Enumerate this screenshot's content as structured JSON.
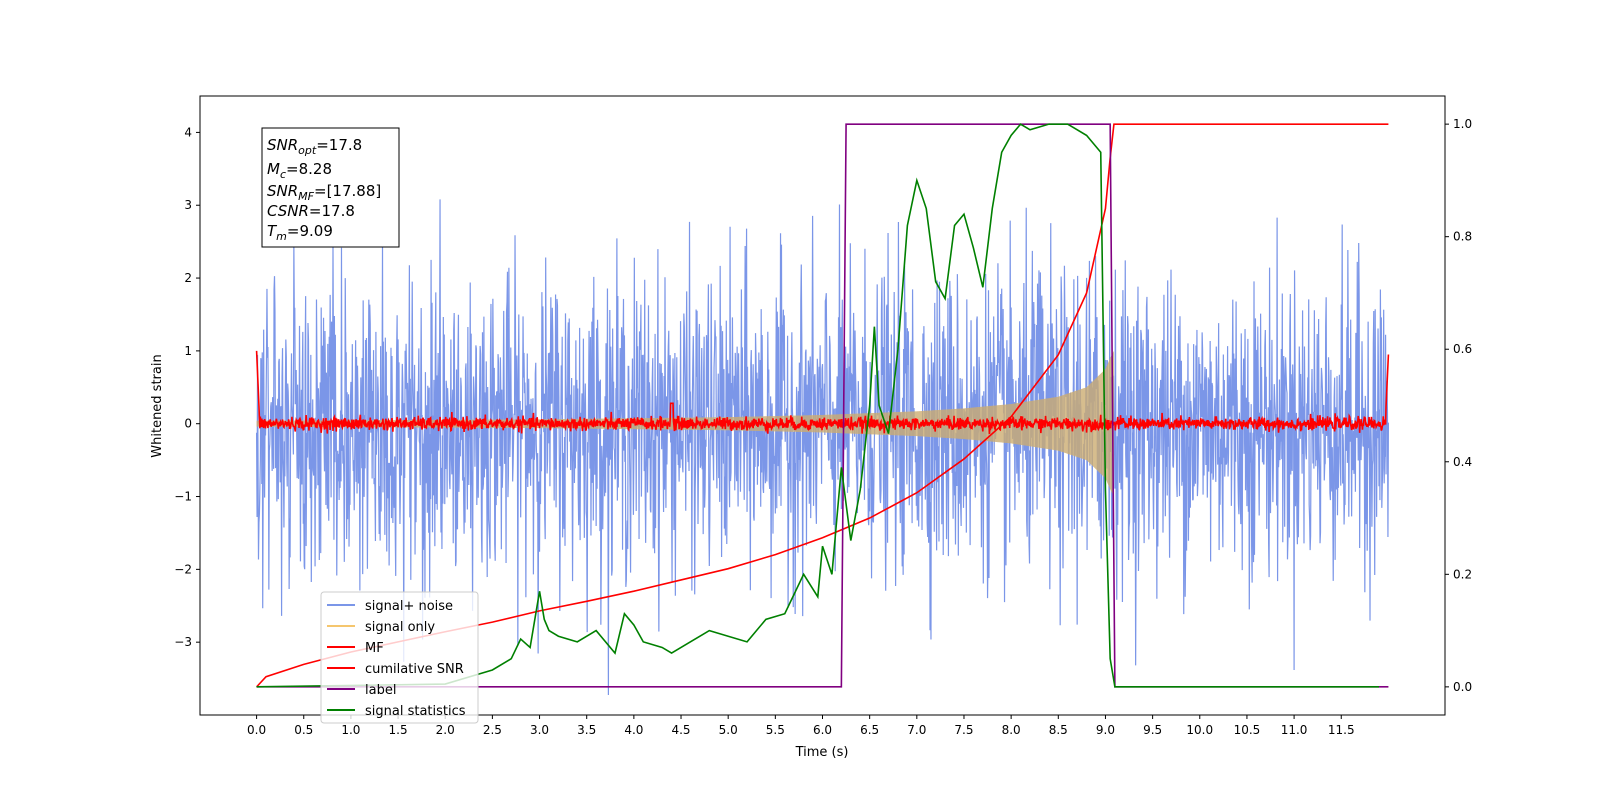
{
  "chart_data": {
    "type": "line",
    "xlabel": "Time (s)",
    "ylabel": "Whitened strain",
    "xlim": [
      -0.6,
      12.6
    ],
    "ylim": [
      -4.0,
      4.5
    ],
    "y2lim": [
      -0.05,
      1.05
    ],
    "x_ticks": [
      0.0,
      0.5,
      1.0,
      1.5,
      2.0,
      2.5,
      3.0,
      3.5,
      4.0,
      4.5,
      5.0,
      5.5,
      6.0,
      6.5,
      7.0,
      7.5,
      8.0,
      8.5,
      9.0,
      9.5,
      10.0,
      10.5,
      11.0,
      11.5
    ],
    "x_tick_labels": [
      "0.0",
      "0.5",
      "1.0",
      "1.5",
      "2.0",
      "2.5",
      "3.0",
      "3.5",
      "4.0",
      "4.5",
      "5.0",
      "5.5",
      "6.0",
      "6.5",
      "7.0",
      "7.5",
      "8.0",
      "8.5",
      "9.0",
      "9.5",
      "10.0",
      "10.5",
      "11.0",
      "11.5"
    ],
    "y_ticks": [
      -3,
      -2,
      -1,
      0,
      1,
      2,
      3,
      4
    ],
    "y_tick_labels": [
      "−3",
      "−2",
      "−1",
      "0",
      "1",
      "2",
      "3",
      "4"
    ],
    "y2_ticks": [
      0.0,
      0.2,
      0.4,
      0.6,
      0.8,
      1.0
    ],
    "y2_tick_labels": [
      "0.0",
      "0.2",
      "0.4",
      "0.6",
      "0.8",
      "1.0"
    ],
    "grid": false,
    "legend_position": "lower-left",
    "series": [
      {
        "name": "signal+ noise",
        "color": "#7b96e8",
        "axis": "left",
        "description": "whitened noise with unit variance plus chirp signal over 0–12 s",
        "sigma": 1.0,
        "t_range": [
          0.0,
          12.0
        ]
      },
      {
        "name": "signal only",
        "color": "#f5c66e",
        "axis": "left",
        "envelope": {
          "t": [
            0.0,
            3.0,
            5.0,
            6.0,
            7.0,
            7.5,
            8.0,
            8.5,
            8.8,
            9.0,
            9.05,
            9.09
          ],
          "amp": [
            0.04,
            0.06,
            0.09,
            0.12,
            0.17,
            0.21,
            0.27,
            0.37,
            0.5,
            0.75,
            0.9,
            1.0
          ]
        }
      },
      {
        "name": "MF",
        "color": "#ff0000",
        "axis": "left",
        "description": "matched-filter output, noise around 0 with edge spikes",
        "x": [
          0.0,
          0.02,
          4.4,
          11.98,
          12.0
        ],
        "y": [
          1.0,
          0.1,
          0.28,
          0.1,
          0.95
        ]
      },
      {
        "name": "cumilative SNR",
        "color": "#ff0000",
        "axis": "right",
        "x": [
          0.0,
          0.1,
          0.5,
          1.0,
          1.5,
          2.0,
          2.5,
          3.0,
          3.5,
          4.0,
          4.5,
          5.0,
          5.5,
          6.0,
          6.5,
          7.0,
          7.5,
          8.0,
          8.5,
          8.8,
          9.0,
          9.05,
          9.09,
          12.0
        ],
        "y": [
          0.0,
          0.018,
          0.04,
          0.062,
          0.08,
          0.098,
          0.115,
          0.135,
          0.152,
          0.17,
          0.19,
          0.21,
          0.235,
          0.265,
          0.3,
          0.345,
          0.405,
          0.48,
          0.59,
          0.7,
          0.85,
          0.94,
          1.0,
          1.0
        ]
      },
      {
        "name": "label",
        "color": "#800080",
        "axis": "right",
        "x": [
          0.0,
          6.2,
          6.25,
          9.05,
          9.1,
          12.0
        ],
        "y": [
          0.0,
          0.0,
          1.0,
          1.0,
          0.0,
          0.0
        ]
      },
      {
        "name": "signal statistics",
        "color": "#008000",
        "axis": "right",
        "x": [
          0.0,
          2.0,
          2.3,
          2.5,
          2.7,
          2.8,
          2.9,
          3.0,
          3.05,
          3.1,
          3.2,
          3.4,
          3.6,
          3.8,
          3.9,
          4.0,
          4.1,
          4.3,
          4.4,
          4.6,
          4.8,
          5.0,
          5.2,
          5.4,
          5.6,
          5.8,
          5.95,
          6.0,
          6.1,
          6.2,
          6.3,
          6.4,
          6.5,
          6.55,
          6.6,
          6.7,
          6.8,
          6.9,
          7.0,
          7.1,
          7.2,
          7.3,
          7.4,
          7.5,
          7.6,
          7.7,
          7.8,
          7.9,
          8.0,
          8.1,
          8.2,
          8.4,
          8.6,
          8.8,
          8.95,
          9.0,
          9.05,
          9.1,
          11.9
        ],
        "y": [
          0.0,
          0.005,
          0.02,
          0.03,
          0.05,
          0.085,
          0.07,
          0.17,
          0.12,
          0.1,
          0.09,
          0.08,
          0.1,
          0.06,
          0.13,
          0.11,
          0.08,
          0.07,
          0.06,
          0.08,
          0.1,
          0.09,
          0.08,
          0.12,
          0.13,
          0.2,
          0.16,
          0.25,
          0.2,
          0.39,
          0.26,
          0.35,
          0.5,
          0.64,
          0.5,
          0.45,
          0.6,
          0.82,
          0.9,
          0.85,
          0.72,
          0.69,
          0.82,
          0.84,
          0.78,
          0.71,
          0.85,
          0.95,
          0.98,
          1.0,
          0.99,
          1.0,
          1.0,
          0.98,
          0.95,
          0.35,
          0.05,
          0.0,
          0.0
        ]
      }
    ]
  },
  "info_box": {
    "snr_opt_main": "SNR",
    "snr_opt_sub": "opt",
    "snr_opt_value": "=17.8",
    "mc_main": "M",
    "mc_sub": "c",
    "mc_value": "=8.28",
    "snr_mf_main": "SNR",
    "snr_mf_sub": "MF",
    "snr_mf_value": "=[17.88]",
    "csnr_main": "CSNR",
    "csnr_value": "=17.8",
    "tm_main": "T",
    "tm_sub": "m",
    "tm_value": "=9.09"
  }
}
